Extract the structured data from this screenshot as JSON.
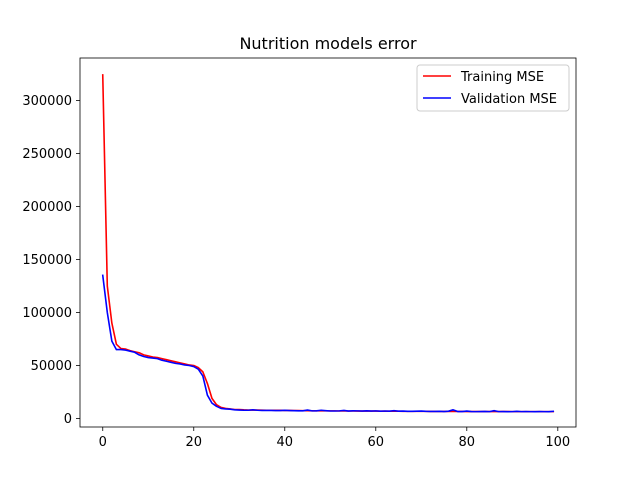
{
  "chart_data": {
    "type": "line",
    "title": "Nutrition models error",
    "xlabel": "",
    "ylabel": "",
    "xlim": [
      -5,
      104
    ],
    "ylim": [
      -8000,
      340000
    ],
    "x_ticks": [
      0,
      20,
      40,
      60,
      80,
      100
    ],
    "x_tick_labels": [
      "0",
      "20",
      "40",
      "60",
      "80",
      "100"
    ],
    "y_ticks": [
      0,
      50000,
      100000,
      150000,
      200000,
      250000,
      300000
    ],
    "y_tick_labels": [
      "0",
      "50000",
      "100000",
      "150000",
      "200000",
      "250000",
      "300000"
    ],
    "grid": false,
    "legend_position": "top-right",
    "series": [
      {
        "name": "Training MSE",
        "color": "#ff0000",
        "x": [
          0,
          1,
          2,
          3,
          4,
          5,
          6,
          7,
          8,
          9,
          10,
          11,
          12,
          13,
          14,
          15,
          16,
          17,
          18,
          19,
          20,
          21,
          22,
          23,
          24,
          25,
          26,
          27,
          28,
          29,
          30,
          31,
          32,
          33,
          34,
          35,
          36,
          37,
          38,
          39,
          40,
          41,
          42,
          43,
          44,
          45,
          46,
          47,
          48,
          49,
          50,
          51,
          52,
          53,
          54,
          55,
          56,
          57,
          58,
          59,
          60,
          61,
          62,
          63,
          64,
          65,
          66,
          67,
          68,
          69,
          70,
          71,
          72,
          73,
          74,
          75,
          76,
          77,
          78,
          79,
          80,
          81,
          82,
          83,
          84,
          85,
          86,
          87,
          88,
          89,
          90,
          91,
          92,
          93,
          94,
          95,
          96,
          97,
          98,
          99
        ],
        "values": [
          324000,
          125000,
          90000,
          70000,
          66000,
          65500,
          64000,
          63000,
          62000,
          60000,
          59000,
          58000,
          57500,
          56500,
          55500,
          54500,
          53500,
          52500,
          51500,
          50500,
          50000,
          48000,
          44000,
          33000,
          19000,
          13000,
          10500,
          9500,
          9000,
          8500,
          8500,
          8200,
          8000,
          8000,
          8000,
          7900,
          7800,
          7800,
          7700,
          7700,
          7600,
          7600,
          7500,
          7500,
          7400,
          7400,
          7300,
          7300,
          7300,
          7200,
          7200,
          7200,
          7100,
          7100,
          7100,
          7100,
          7000,
          7000,
          7000,
          7000,
          7000,
          6900,
          6900,
          6900,
          6900,
          6900,
          6800,
          6800,
          6800,
          6800,
          6800,
          6800,
          6700,
          6700,
          6700,
          6700,
          6700,
          6700,
          6700,
          6700,
          6600,
          6600,
          6600,
          6600,
          6600,
          6600,
          6600,
          6600,
          6600,
          6600,
          6500,
          6500,
          6500,
          6500,
          6500,
          6500,
          6500,
          6500,
          6500,
          6500
        ]
      },
      {
        "name": "Validation MSE",
        "color": "#0000ff",
        "x": [
          0,
          1,
          2,
          3,
          4,
          5,
          6,
          7,
          8,
          9,
          10,
          11,
          12,
          13,
          14,
          15,
          16,
          17,
          18,
          19,
          20,
          21,
          22,
          23,
          24,
          25,
          26,
          27,
          28,
          29,
          30,
          31,
          32,
          33,
          34,
          35,
          36,
          37,
          38,
          39,
          40,
          41,
          42,
          43,
          44,
          45,
          46,
          47,
          48,
          49,
          50,
          51,
          52,
          53,
          54,
          55,
          56,
          57,
          58,
          59,
          60,
          61,
          62,
          63,
          64,
          65,
          66,
          67,
          68,
          69,
          70,
          71,
          72,
          73,
          74,
          75,
          76,
          77,
          78,
          79,
          80,
          81,
          82,
          83,
          84,
          85,
          86,
          87,
          88,
          89,
          90,
          91,
          92,
          93,
          94,
          95,
          96,
          97,
          98,
          99
        ],
        "values": [
          135000,
          100000,
          73000,
          65000,
          65000,
          64500,
          63500,
          62500,
          60000,
          58500,
          57500,
          57000,
          56500,
          55000,
          54000,
          53000,
          52000,
          51500,
          50500,
          50000,
          49000,
          46500,
          40000,
          22000,
          14500,
          11500,
          9500,
          9000,
          8800,
          8200,
          8000,
          7800,
          7800,
          8200,
          7800,
          7600,
          7600,
          7600,
          7500,
          7500,
          7700,
          7500,
          7400,
          7300,
          7300,
          8000,
          7200,
          7300,
          7800,
          7400,
          7100,
          7100,
          7200,
          7600,
          7000,
          7300,
          7200,
          7000,
          7300,
          7000,
          7200,
          6900,
          7100,
          6900,
          7400,
          6900,
          7000,
          6800,
          6800,
          6900,
          7000,
          6800,
          6700,
          6700,
          6800,
          6600,
          6900,
          8200,
          6600,
          6600,
          7000,
          6600,
          6500,
          6600,
          6700,
          6500,
          7400,
          6500,
          6600,
          6400,
          6500,
          6800,
          6500,
          6600,
          6500,
          6400,
          6600,
          6500,
          6400,
          6800
        ]
      }
    ]
  }
}
